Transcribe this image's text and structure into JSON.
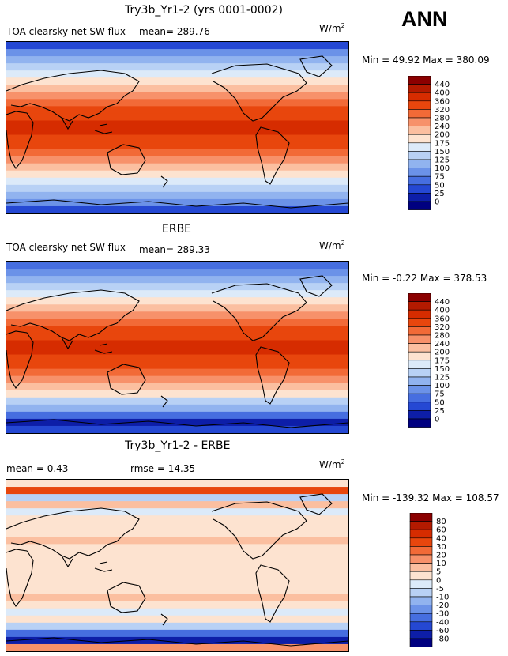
{
  "season": "ANN",
  "units_main": "W/m",
  "units_exp": "2",
  "panels": [
    {
      "title": "Try3b_Yr1-2 (yrs 0001-0002)",
      "field": "TOA clearsky net SW flux",
      "mean": "mean= 289.76",
      "minmax": "Min =  49.92 Max = 380.09",
      "levels": [
        "440",
        "400",
        "360",
        "320",
        "280",
        "240",
        "200",
        "175",
        "150",
        "125",
        "100",
        "75",
        "50",
        "25",
        "0"
      ],
      "colors": [
        "#8b0000",
        "#b31a00",
        "#d62c00",
        "#e8460d",
        "#f26a37",
        "#f7916a",
        "#fbbfa0",
        "#fde3d0",
        "#dceaf9",
        "#b8d1f5",
        "#91b3ef",
        "#6b92e8",
        "#466ee0",
        "#2548d3",
        "#0d1ea8",
        "#000080"
      ]
    },
    {
      "title": "ERBE",
      "field": "TOA clearsky net SW flux",
      "mean": "mean= 289.33",
      "minmax": "Min =  -0.22 Max = 378.53",
      "levels": [
        "440",
        "400",
        "360",
        "320",
        "280",
        "240",
        "200",
        "175",
        "150",
        "125",
        "100",
        "75",
        "50",
        "25",
        "0"
      ],
      "colors": [
        "#8b0000",
        "#b31a00",
        "#d62c00",
        "#e8460d",
        "#f26a37",
        "#f7916a",
        "#fbbfa0",
        "#fde3d0",
        "#dceaf9",
        "#b8d1f5",
        "#91b3ef",
        "#6b92e8",
        "#466ee0",
        "#2548d3",
        "#0d1ea8",
        "#000080"
      ]
    },
    {
      "title": "Try3b_Yr1-2 - ERBE",
      "mean": "mean =    0.43",
      "rmse": "rmse =  14.35",
      "minmax": "Min = -139.32 Max = 108.57",
      "levels": [
        "80",
        "60",
        "40",
        "30",
        "20",
        "10",
        "5",
        "0",
        "-5",
        "-10",
        "-20",
        "-30",
        "-40",
        "-60",
        "-80"
      ],
      "colors": [
        "#8b0000",
        "#b31a00",
        "#d62c00",
        "#e8460d",
        "#f26a37",
        "#f7916a",
        "#fbbfa0",
        "#fde3d0",
        "#dceaf9",
        "#b8d1f5",
        "#91b3ef",
        "#6b92e8",
        "#466ee0",
        "#2548d3",
        "#0d1ea8",
        "#000080"
      ]
    }
  ],
  "chart_data": [
    {
      "type": "heatmap",
      "title": "Try3b_Yr1-2 (yrs 0001-0002)",
      "variable": "TOA clearsky net SW flux",
      "units": "W/m2",
      "mean": 289.76,
      "min": 49.92,
      "max": 380.09,
      "contour_levels": [
        0,
        25,
        50,
        75,
        100,
        125,
        150,
        175,
        200,
        240,
        280,
        320,
        360,
        400,
        440
      ]
    },
    {
      "type": "heatmap",
      "title": "ERBE",
      "variable": "TOA clearsky net SW flux",
      "units": "W/m2",
      "mean": 289.33,
      "min": -0.22,
      "max": 378.53,
      "contour_levels": [
        0,
        25,
        50,
        75,
        100,
        125,
        150,
        175,
        200,
        240,
        280,
        320,
        360,
        400,
        440
      ]
    },
    {
      "type": "heatmap",
      "title": "Try3b_Yr1-2 - ERBE",
      "units": "W/m2",
      "mean": 0.43,
      "rmse": 14.35,
      "min": -139.32,
      "max": 108.57,
      "contour_levels": [
        -80,
        -60,
        -40,
        -30,
        -20,
        -10,
        -5,
        0,
        5,
        10,
        20,
        30,
        40,
        60,
        80
      ]
    }
  ]
}
